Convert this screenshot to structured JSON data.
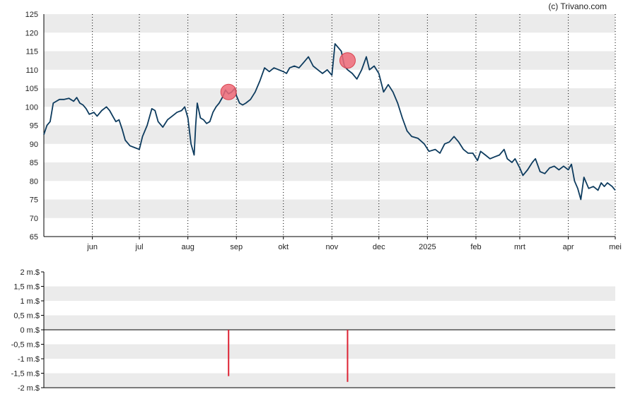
{
  "credit": "(c) Trivano.com",
  "colors": {
    "line": "#0d3b5e",
    "band": "#ebebeb",
    "marker_fill": "#ee6a78",
    "marker_stroke": "#d9434f",
    "volume_bar": "#dd2233",
    "axis": "#000000",
    "gridline": "#000000"
  },
  "chart_data": [
    {
      "type": "line",
      "x_axis": {
        "range": [
          "2024-05-01",
          "2025-05-01"
        ],
        "ticks": [
          {
            "date": "2024-06-01",
            "label": "jun"
          },
          {
            "date": "2024-07-01",
            "label": "jul"
          },
          {
            "date": "2024-08-01",
            "label": "aug"
          },
          {
            "date": "2024-09-01",
            "label": "sep"
          },
          {
            "date": "2024-10-01",
            "label": "okt"
          },
          {
            "date": "2024-11-01",
            "label": "nov"
          },
          {
            "date": "2024-12-01",
            "label": "dec"
          },
          {
            "date": "2025-01-01",
            "label": "2025"
          },
          {
            "date": "2025-02-01",
            "label": "feb"
          },
          {
            "date": "2025-03-01",
            "label": "mrt"
          },
          {
            "date": "2025-04-01",
            "label": "apr"
          },
          {
            "date": "2025-05-01",
            "label": "mei"
          }
        ],
        "grid": "dotted"
      },
      "y_axis": {
        "range": [
          65,
          125
        ],
        "ticks": [
          "65",
          "70",
          "75",
          "80",
          "85",
          "90",
          "95",
          "100",
          "105",
          "110",
          "115",
          "120",
          "125"
        ],
        "grid": "alternating bands"
      },
      "series": [
        {
          "points": [
            [
              "2024-05-01",
              92.5
            ],
            [
              "2024-05-03",
              95
            ],
            [
              "2024-05-05",
              96
            ],
            [
              "2024-05-07",
              101
            ],
            [
              "2024-05-09",
              101.5
            ],
            [
              "2024-05-11",
              102
            ],
            [
              "2024-05-14",
              102
            ],
            [
              "2024-05-17",
              102.3
            ],
            [
              "2024-05-20",
              101.5
            ],
            [
              "2024-05-22",
              102.5
            ],
            [
              "2024-05-24",
              101
            ],
            [
              "2024-05-26",
              100.5
            ],
            [
              "2024-05-28",
              99.5
            ],
            [
              "2024-05-30",
              98
            ],
            [
              "2024-06-02",
              98.5
            ],
            [
              "2024-06-04",
              97.5
            ],
            [
              "2024-06-07",
              99
            ],
            [
              "2024-06-10",
              100
            ],
            [
              "2024-06-12",
              99
            ],
            [
              "2024-06-14",
              97.5
            ],
            [
              "2024-06-16",
              96
            ],
            [
              "2024-06-18",
              96.5
            ],
            [
              "2024-06-20",
              94
            ],
            [
              "2024-06-22",
              91
            ],
            [
              "2024-06-25",
              89.5
            ],
            [
              "2024-06-28",
              89
            ],
            [
              "2024-07-01",
              88.5
            ],
            [
              "2024-07-03",
              92
            ],
            [
              "2024-07-06",
              95
            ],
            [
              "2024-07-09",
              99.5
            ],
            [
              "2024-07-11",
              99
            ],
            [
              "2024-07-13",
              96
            ],
            [
              "2024-07-16",
              94.5
            ],
            [
              "2024-07-19",
              96.5
            ],
            [
              "2024-07-22",
              97.5
            ],
            [
              "2024-07-25",
              98.5
            ],
            [
              "2024-07-28",
              99
            ],
            [
              "2024-07-30",
              100
            ],
            [
              "2024-08-01",
              97
            ],
            [
              "2024-08-03",
              90
            ],
            [
              "2024-08-05",
              87
            ],
            [
              "2024-08-06",
              95
            ],
            [
              "2024-08-07",
              101
            ],
            [
              "2024-08-09",
              97
            ],
            [
              "2024-08-11",
              96.5
            ],
            [
              "2024-08-13",
              95.5
            ],
            [
              "2024-08-15",
              96
            ],
            [
              "2024-08-17",
              98.5
            ],
            [
              "2024-08-19",
              100
            ],
            [
              "2024-08-21",
              101
            ],
            [
              "2024-08-23",
              102.5
            ],
            [
              "2024-08-25",
              104.5
            ],
            [
              "2024-08-27",
              103.5
            ],
            [
              "2024-08-29",
              104
            ],
            [
              "2024-08-31",
              105
            ],
            [
              "2024-09-01",
              103
            ],
            [
              "2024-09-03",
              101
            ],
            [
              "2024-09-05",
              100.5
            ],
            [
              "2024-09-07",
              101
            ],
            [
              "2024-09-10",
              102
            ],
            [
              "2024-09-13",
              104
            ],
            [
              "2024-09-16",
              107
            ],
            [
              "2024-09-19",
              110.5
            ],
            [
              "2024-09-22",
              109.5
            ],
            [
              "2024-09-25",
              110.5
            ],
            [
              "2024-09-28",
              110
            ],
            [
              "2024-10-01",
              109.5
            ],
            [
              "2024-10-03",
              109
            ],
            [
              "2024-10-05",
              110.5
            ],
            [
              "2024-10-08",
              111
            ],
            [
              "2024-10-11",
              110.5
            ],
            [
              "2024-10-14",
              112
            ],
            [
              "2024-10-17",
              113.5
            ],
            [
              "2024-10-20",
              111
            ],
            [
              "2024-10-23",
              110
            ],
            [
              "2024-10-26",
              109
            ],
            [
              "2024-10-29",
              110
            ],
            [
              "2024-11-01",
              108.5
            ],
            [
              "2024-11-03",
              117
            ],
            [
              "2024-11-05",
              116
            ],
            [
              "2024-11-07",
              115
            ],
            [
              "2024-11-09",
              111
            ],
            [
              "2024-11-11",
              110
            ],
            [
              "2024-11-14",
              109
            ],
            [
              "2024-11-17",
              107.5
            ],
            [
              "2024-11-20",
              110
            ],
            [
              "2024-11-23",
              113.5
            ],
            [
              "2024-11-25",
              110
            ],
            [
              "2024-11-28",
              111
            ],
            [
              "2024-12-01",
              109
            ],
            [
              "2024-12-04",
              104
            ],
            [
              "2024-12-07",
              106
            ],
            [
              "2024-12-10",
              104
            ],
            [
              "2024-12-13",
              101
            ],
            [
              "2024-12-16",
              97
            ],
            [
              "2024-12-19",
              93.5
            ],
            [
              "2024-12-22",
              92
            ],
            [
              "2024-12-26",
              91.5
            ],
            [
              "2024-12-30",
              90
            ],
            [
              "2025-01-02",
              88
            ],
            [
              "2025-01-06",
              88.5
            ],
            [
              "2025-01-09",
              87.5
            ],
            [
              "2025-01-12",
              90
            ],
            [
              "2025-01-15",
              90.5
            ],
            [
              "2025-01-18",
              92
            ],
            [
              "2025-01-21",
              90.5
            ],
            [
              "2025-01-24",
              88.5
            ],
            [
              "2025-01-27",
              87.5
            ],
            [
              "2025-01-30",
              87.5
            ],
            [
              "2025-02-02",
              85.5
            ],
            [
              "2025-02-04",
              88
            ],
            [
              "2025-02-07",
              87
            ],
            [
              "2025-02-10",
              86
            ],
            [
              "2025-02-13",
              86.5
            ],
            [
              "2025-02-16",
              87
            ],
            [
              "2025-02-19",
              88.5
            ],
            [
              "2025-02-21",
              86
            ],
            [
              "2025-02-24",
              85
            ],
            [
              "2025-02-26",
              86
            ],
            [
              "2025-03-01",
              83.5
            ],
            [
              "2025-03-03",
              81.5
            ],
            [
              "2025-03-06",
              83
            ],
            [
              "2025-03-09",
              85
            ],
            [
              "2025-03-11",
              86
            ],
            [
              "2025-03-14",
              82.5
            ],
            [
              "2025-03-17",
              82
            ],
            [
              "2025-03-20",
              83.5
            ],
            [
              "2025-03-23",
              84
            ],
            [
              "2025-03-26",
              83
            ],
            [
              "2025-03-29",
              84
            ],
            [
              "2025-04-01",
              83
            ],
            [
              "2025-04-03",
              84.5
            ],
            [
              "2025-04-05",
              80
            ],
            [
              "2025-04-07",
              78
            ],
            [
              "2025-04-09",
              75
            ],
            [
              "2025-04-11",
              81
            ],
            [
              "2025-04-14",
              78
            ],
            [
              "2025-04-17",
              78.5
            ],
            [
              "2025-04-20",
              77.5
            ],
            [
              "2025-04-22",
              79.5
            ],
            [
              "2025-04-24",
              78.5
            ],
            [
              "2025-04-26",
              79.5
            ],
            [
              "2025-04-29",
              78.5
            ],
            [
              "2025-05-01",
              77.5
            ]
          ]
        }
      ],
      "markers": [
        {
          "date": "2024-08-27",
          "value": 104
        },
        {
          "date": "2024-11-11",
          "value": 112.5
        }
      ]
    },
    {
      "type": "bar",
      "x_axis": {
        "range": [
          "2024-05-01",
          "2025-05-01"
        ]
      },
      "y_axis": {
        "range": [
          -2,
          2
        ],
        "ticks": [
          "2 m.$",
          "1,5 m.$",
          "1 m.$",
          "0,5 m.$",
          "0 m.$",
          "-0,5 m.$",
          "-1 m.$",
          "-1,5 m.$",
          "-2 m.$"
        ],
        "grid": "alternating bands"
      },
      "bars": [
        {
          "date": "2024-08-27",
          "value": -1.6
        },
        {
          "date": "2024-11-11",
          "value": -1.8
        }
      ]
    }
  ]
}
